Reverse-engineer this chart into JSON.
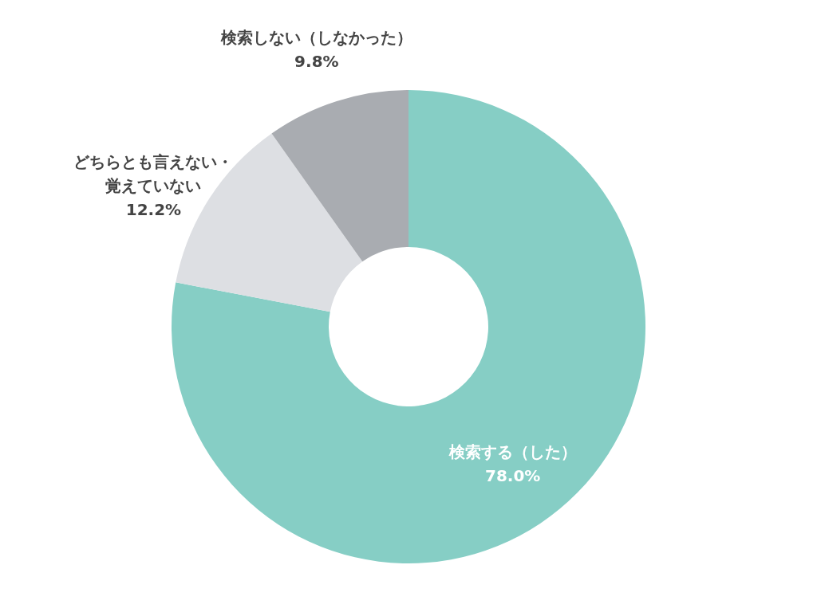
{
  "chart_data": {
    "type": "donut",
    "categories": [
      "検索する（した）",
      "どちらとも言えない・覚えていない",
      "検索しない（しなかった）"
    ],
    "values": [
      78.0,
      12.2,
      9.8
    ],
    "colors": [
      "#86cec5",
      "#dddfe3",
      "#a9acb1"
    ],
    "value_labels": [
      "78.0%",
      "12.2%",
      "9.8%"
    ],
    "legend": false
  }
}
